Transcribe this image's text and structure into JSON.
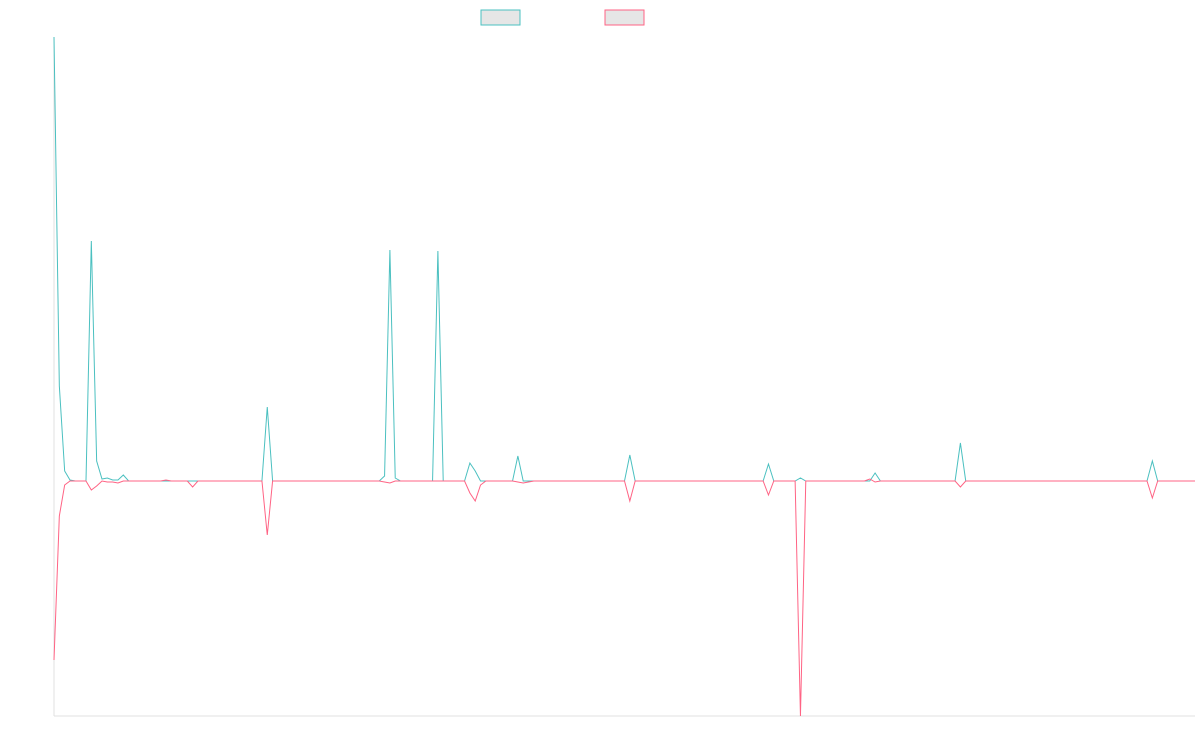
{
  "chart_data": {
    "type": "line",
    "x": [
      0,
      1,
      2,
      3,
      4,
      5,
      6,
      7,
      8,
      9,
      10,
      11,
      12,
      13,
      14,
      15,
      16,
      17,
      18,
      19,
      20,
      21,
      22,
      23,
      24,
      25,
      26,
      27,
      28,
      29,
      30,
      31,
      32,
      33,
      34,
      35,
      36,
      37,
      38,
      39,
      40,
      41,
      42,
      43,
      44,
      45,
      46,
      47,
      48,
      49,
      50,
      51,
      52,
      53,
      54,
      55,
      56,
      57,
      58,
      59,
      60,
      61,
      62,
      63,
      64,
      65,
      66,
      67,
      68,
      69,
      70,
      71,
      72,
      73,
      74,
      75,
      76,
      77,
      78,
      79,
      80,
      81,
      82,
      83,
      84,
      85,
      86,
      87,
      88,
      89,
      90,
      91,
      92,
      93,
      94,
      95,
      96,
      97,
      98,
      99,
      100,
      101,
      102,
      103,
      104,
      105,
      106,
      107,
      108,
      109,
      110,
      111,
      112,
      113,
      114,
      115,
      116,
      117,
      118,
      119,
      120,
      121,
      122,
      123,
      124,
      125,
      126,
      127,
      128,
      129,
      130,
      131,
      132,
      133,
      134,
      135,
      136,
      137,
      138,
      139,
      140,
      141,
      142,
      143,
      144,
      145,
      146,
      147,
      148,
      149,
      150,
      151,
      152,
      153,
      154,
      155,
      156,
      157,
      158,
      159,
      160,
      161,
      162,
      163,
      164,
      165,
      166,
      167,
      168,
      169,
      170,
      171,
      172,
      173,
      174,
      175,
      176,
      177,
      178,
      179,
      180,
      181,
      182,
      183,
      184,
      185,
      186,
      187,
      188,
      189,
      190,
      191,
      192,
      193,
      194,
      195,
      196,
      197,
      198,
      199,
      200,
      201,
      202,
      203,
      204,
      205,
      206,
      207,
      208,
      209,
      210,
      211,
      212,
      213,
      214
    ],
    "xlim": [
      0,
      214
    ],
    "ylim": [
      -235,
      444
    ],
    "series": [
      {
        "color": "#4bc0c0",
        "values": [
          444,
          95,
          10,
          1,
          0,
          0,
          0,
          240,
          20,
          2,
          3,
          1,
          1,
          6,
          0,
          0,
          0,
          0,
          0,
          0,
          0,
          0,
          0,
          0,
          0,
          0,
          0,
          0,
          0,
          0,
          0,
          0,
          0,
          0,
          0,
          0,
          0,
          0,
          0,
          0,
          74,
          0,
          0,
          0,
          0,
          0,
          0,
          0,
          0,
          0,
          0,
          0,
          0,
          0,
          0,
          0,
          0,
          0,
          0,
          0,
          0,
          0,
          5,
          231,
          3,
          0,
          0,
          0,
          0,
          0,
          0,
          0,
          230,
          0,
          0,
          0,
          0,
          0,
          18,
          10,
          0,
          0,
          0,
          0,
          0,
          0,
          0,
          25,
          0,
          0,
          0,
          0,
          0,
          0,
          0,
          0,
          0,
          0,
          0,
          0,
          0,
          0,
          0,
          0,
          0,
          0,
          0,
          0,
          26,
          0,
          0,
          0,
          0,
          0,
          0,
          0,
          0,
          0,
          0,
          0,
          0,
          0,
          0,
          0,
          0,
          0,
          0,
          0,
          0,
          0,
          0,
          0,
          0,
          0,
          17,
          0,
          0,
          0,
          0,
          0,
          3,
          0,
          0,
          0,
          0,
          0,
          0,
          0,
          0,
          0,
          0,
          0,
          0,
          0,
          8,
          0,
          0,
          0,
          0,
          0,
          0,
          0,
          0,
          0,
          0,
          0,
          0,
          0,
          0,
          0,
          38,
          0,
          0,
          0,
          0,
          0,
          0,
          0,
          0,
          0,
          0,
          0,
          0,
          0,
          0,
          0,
          0,
          0,
          0,
          0,
          0,
          0,
          0,
          0,
          0,
          0,
          0,
          0,
          0,
          0,
          0,
          0,
          0,
          0,
          0,
          0,
          20,
          0,
          0,
          0,
          0,
          0,
          0,
          0,
          0
        ]
      },
      {
        "color": "#ff6384",
        "values": [
          -179,
          -35,
          -4,
          0,
          0,
          0,
          0,
          -9,
          -5,
          0,
          -1,
          -1,
          -2,
          0,
          0,
          0,
          0,
          0,
          0,
          0,
          0,
          1,
          0,
          0,
          0,
          0,
          -6,
          0,
          0,
          0,
          0,
          0,
          0,
          0,
          0,
          0,
          0,
          0,
          0,
          0,
          -54,
          0,
          0,
          0,
          0,
          0,
          0,
          0,
          0,
          0,
          0,
          0,
          0,
          0,
          0,
          0,
          0,
          0,
          0,
          0,
          0,
          0,
          -1,
          -2,
          0,
          0,
          0,
          0,
          0,
          0,
          0,
          0,
          0,
          0,
          0,
          0,
          0,
          0,
          -12,
          -20,
          -4,
          0,
          0,
          0,
          0,
          0,
          0,
          -1,
          -2,
          -1,
          0,
          0,
          0,
          0,
          0,
          0,
          0,
          0,
          0,
          0,
          0,
          0,
          0,
          0,
          0,
          0,
          0,
          0,
          -20,
          0,
          0,
          0,
          0,
          0,
          0,
          0,
          0,
          0,
          0,
          0,
          0,
          0,
          0,
          0,
          0,
          0,
          0,
          0,
          0,
          0,
          0,
          0,
          0,
          0,
          -14,
          0,
          0,
          0,
          0,
          0,
          -235,
          0,
          0,
          0,
          0,
          0,
          0,
          0,
          0,
          0,
          0,
          0,
          0,
          2,
          -1,
          0,
          0,
          0,
          0,
          0,
          0,
          0,
          0,
          0,
          0,
          0,
          0,
          0,
          0,
          0,
          -6,
          0,
          0,
          0,
          0,
          0,
          0,
          0,
          0,
          0,
          0,
          0,
          0,
          0,
          0,
          0,
          0,
          0,
          0,
          0,
          0,
          0,
          0,
          0,
          0,
          0,
          0,
          0,
          0,
          0,
          0,
          0,
          0,
          0,
          0,
          0,
          -17,
          0,
          0,
          0,
          0,
          0,
          0,
          0,
          0
        ]
      }
    ]
  }
}
